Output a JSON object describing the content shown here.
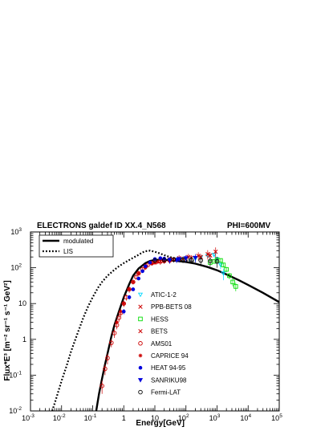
{
  "chart_data": {
    "type": "scatter",
    "title": "ELECTRONS galdef ID XX.4_N568",
    "subtitle": "PHI=600MV",
    "xlabel": "Energy[GeV]",
    "ylabel": "Flux*E³ [m⁻² sr⁻¹ s⁻¹ GeV²]",
    "xscale": "log",
    "yscale": "log",
    "xlim": [
      0.001,
      100000
    ],
    "ylim": [
      0.01,
      1000
    ],
    "x_ticks": [
      {
        "value": 0.001,
        "base": "10",
        "exp": "-3"
      },
      {
        "value": 0.01,
        "base": "10",
        "exp": "-2"
      },
      {
        "value": 0.1,
        "base": "10",
        "exp": "-1"
      },
      {
        "value": 1,
        "base": "1",
        "exp": ""
      },
      {
        "value": 10,
        "base": "10",
        "exp": ""
      },
      {
        "value": 100,
        "base": "10",
        "exp": "2"
      },
      {
        "value": 1000,
        "base": "10",
        "exp": "3"
      },
      {
        "value": 10000,
        "base": "10",
        "exp": "4"
      },
      {
        "value": 100000,
        "base": "10",
        "exp": "5"
      }
    ],
    "y_ticks": [
      {
        "value": 0.01,
        "base": "10",
        "exp": "-2"
      },
      {
        "value": 0.1,
        "base": "10",
        "exp": "-1"
      },
      {
        "value": 1,
        "base": "1",
        "exp": ""
      },
      {
        "value": 10,
        "base": "10",
        "exp": ""
      },
      {
        "value": 100,
        "base": "10",
        "exp": "2"
      },
      {
        "value": 1000,
        "base": "10",
        "exp": "3"
      }
    ],
    "curves": [
      {
        "name": "modulated",
        "style": "solid",
        "color": "#000000",
        "x": [
          0.13,
          0.16,
          0.2,
          0.25,
          0.3,
          0.4,
          0.5,
          0.7,
          1,
          1.5,
          2,
          3,
          5,
          7,
          10,
          15,
          20,
          30,
          50,
          100,
          200,
          500,
          1000,
          2000,
          5000,
          10000,
          30000,
          100000
        ],
        "y": [
          0.01,
          0.03,
          0.08,
          0.2,
          0.4,
          1.2,
          2.5,
          6,
          15,
          35,
          60,
          95,
          135,
          155,
          165,
          168,
          167,
          162,
          155,
          145,
          130,
          105,
          85,
          65,
          45,
          33,
          20,
          11
        ]
      },
      {
        "name": "LIS",
        "style": "dotted",
        "color": "#000000",
        "x": [
          0.005,
          0.007,
          0.01,
          0.015,
          0.02,
          0.03,
          0.05,
          0.07,
          0.1,
          0.15,
          0.2,
          0.3,
          0.5,
          0.7,
          1,
          1.5,
          2,
          3,
          4,
          5,
          7,
          10,
          15,
          20,
          30,
          50,
          100,
          200
        ],
        "y": [
          0.01,
          0.025,
          0.07,
          0.2,
          0.45,
          1.2,
          4,
          8,
          15,
          28,
          40,
          60,
          88,
          110,
          135,
          165,
          190,
          230,
          270,
          290,
          300,
          280,
          250,
          225,
          200,
          180,
          160,
          150
        ]
      }
    ],
    "series": [
      {
        "name": "ATIC-1-2",
        "marker": "triangle-down-open",
        "color": "#00d8ff",
        "x": [
          20,
          30,
          50,
          80,
          130,
          200,
          300,
          500,
          800,
          1000,
          1300,
          1600
        ],
        "y": [
          150,
          165,
          170,
          172,
          175,
          180,
          195,
          215,
          230,
          175,
          120,
          70
        ],
        "err": [
          8,
          8,
          8,
          10,
          10,
          12,
          15,
          20,
          30,
          30,
          30,
          25
        ]
      },
      {
        "name": "PPB-BETS 08",
        "marker": "x",
        "color": "#cc0000",
        "x": [
          15,
          30,
          60,
          120,
          250,
          500,
          900
        ],
        "y": [
          150,
          170,
          185,
          200,
          215,
          240,
          280
        ],
        "err": [
          30,
          30,
          40,
          45,
          55,
          70,
          90
        ]
      },
      {
        "name": "HESS",
        "marker": "square-open",
        "color": "#00dd00",
        "x": [
          600,
          800,
          1000,
          1300,
          1600,
          2000,
          2500,
          3200,
          4000
        ],
        "y": [
          140,
          150,
          165,
          160,
          120,
          90,
          60,
          40,
          30
        ],
        "err": [
          20,
          20,
          20,
          20,
          18,
          15,
          12,
          10,
          8
        ]
      },
      {
        "name": "BETS",
        "marker": "x",
        "color": "#cc0000",
        "x": [
          10,
          20,
          40,
          80,
          150,
          300,
          600
        ],
        "y": [
          140,
          160,
          170,
          175,
          190,
          200,
          220
        ],
        "err": [
          20,
          25,
          30,
          30,
          35,
          40,
          50
        ]
      },
      {
        "name": "AMS01",
        "marker": "circle-open",
        "color": "#cc0000",
        "x": [
          0.2,
          0.25,
          0.3,
          0.4,
          0.5,
          0.6,
          0.7,
          0.8,
          1,
          1.2,
          1.5,
          2,
          2.5,
          3,
          4,
          5,
          6,
          8,
          10,
          15,
          20,
          30
        ],
        "y": [
          0.05,
          0.15,
          0.3,
          0.8,
          1.5,
          2.5,
          4,
          5.5,
          10,
          15,
          25,
          40,
          55,
          70,
          90,
          110,
          120,
          135,
          145,
          150,
          155,
          160
        ],
        "err": [
          0.02,
          0.05,
          0.1,
          0.2,
          0.4,
          0.6,
          0.9,
          1.2,
          2,
          3,
          5,
          6,
          8,
          10,
          12,
          15,
          15,
          18,
          20,
          22,
          25,
          28
        ]
      },
      {
        "name": "CAPRICE 94",
        "marker": "star",
        "color": "#cc0000",
        "x": [
          0.6,
          0.8,
          1,
          1.5,
          2,
          3,
          5,
          8,
          12,
          20,
          30
        ],
        "y": [
          3,
          6,
          10,
          25,
          40,
          70,
          100,
          130,
          145,
          150,
          155
        ],
        "err": [
          0.6,
          1,
          1.5,
          3,
          5,
          8,
          10,
          12,
          15,
          20,
          25
        ]
      },
      {
        "name": "HEAT 94-95",
        "marker": "circle-filled",
        "color": "#0000dd",
        "x": [
          1,
          1.5,
          2,
          3,
          4,
          5,
          7,
          10,
          15,
          20,
          30,
          50
        ],
        "y": [
          6,
          15,
          25,
          50,
          80,
          110,
          140,
          175,
          185,
          180,
          170,
          165
        ],
        "err": [
          1,
          2,
          3,
          5,
          8,
          10,
          12,
          15,
          18,
          20,
          25,
          30
        ]
      },
      {
        "name": "SANRIKU98",
        "marker": "triangle-down-filled",
        "color": "#0000dd",
        "x": [
          30,
          60,
          100,
          200
        ],
        "y": [
          160,
          175,
          185,
          190
        ],
        "err": [
          30,
          35,
          40,
          50
        ]
      },
      {
        "name": "Fermi-LAT",
        "marker": "circle-open",
        "color": "#000000",
        "x": [
          10,
          20,
          40,
          80,
          150,
          300,
          600,
          1000
        ],
        "y": [
          160,
          165,
          170,
          170,
          165,
          160,
          155,
          150
        ],
        "err": [
          20,
          25,
          30,
          35,
          35,
          40,
          45,
          50
        ]
      }
    ]
  }
}
